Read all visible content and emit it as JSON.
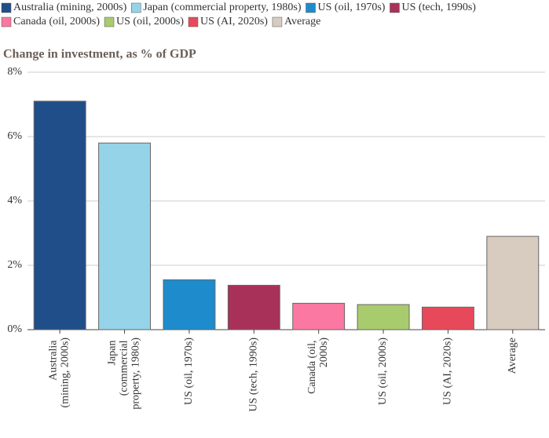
{
  "chart_data": {
    "type": "bar",
    "title": "Change in investment, as % of GDP",
    "categories": [
      "Australia (mining, 2000s)",
      "Japan (commercial property, 1980s)",
      "US (oil, 1970s)",
      "US (tech, 1990s)",
      "Canada (oil, 2000s)",
      "US (oil, 2000s)",
      "US (AI, 2020s)",
      "Average"
    ],
    "values": [
      7.1,
      5.8,
      1.55,
      1.38,
      0.82,
      0.78,
      0.7,
      2.9
    ],
    "colors": [
      "#1f4e88",
      "#95d3e8",
      "#1e8bcd",
      "#a8315a",
      "#fb78a2",
      "#a8cb6e",
      "#e8495a",
      "#d8cbbf"
    ],
    "ylim": [
      0,
      8
    ],
    "yticks": [
      {
        "value": 0,
        "label": "0%"
      },
      {
        "value": 2,
        "label": "2%"
      },
      {
        "value": 4,
        "label": "4%"
      },
      {
        "value": 6,
        "label": "6%"
      },
      {
        "value": 8,
        "label": "8%"
      }
    ],
    "grid": true,
    "legend": "top"
  }
}
